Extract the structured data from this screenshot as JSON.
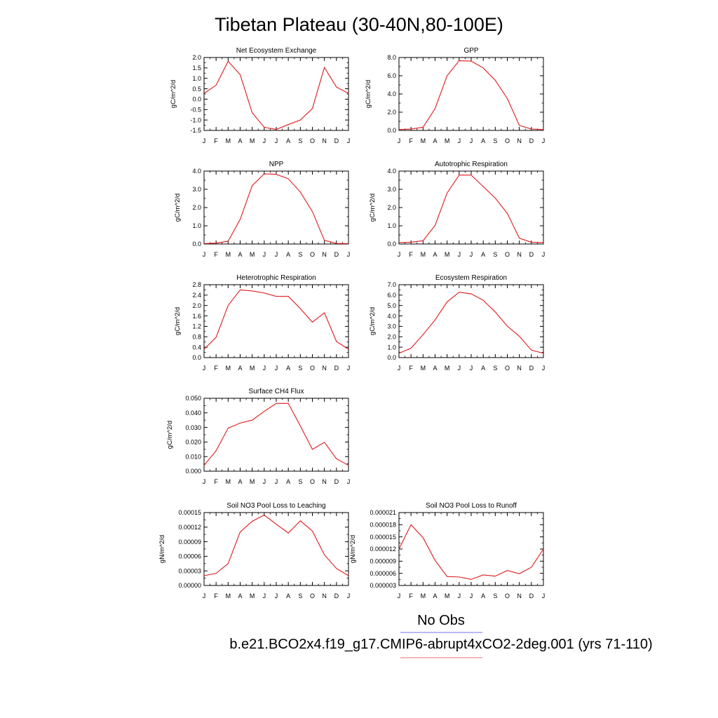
{
  "figure": {
    "title": "Tibetan Plateau (30-40N,80-100E)",
    "months": [
      "J",
      "F",
      "M",
      "A",
      "M",
      "J",
      "J",
      "A",
      "S",
      "O",
      "N",
      "D",
      "J"
    ],
    "line_color": "#e0191b",
    "legend": [
      {
        "label": "No Obs",
        "color": "#8a8ef0"
      },
      {
        "label": "b.e21.BCO2x4.f19_g17.CMIP6-abrupt4xCO2-2deg.001 (yrs 71-110)",
        "color": "#f08a8a"
      }
    ]
  },
  "chart_data": [
    {
      "type": "line",
      "title": "Net Ecosystem Exchange",
      "ylabel": "gC/m^2/d",
      "ylim": [
        -1.5,
        2.0
      ],
      "yticks": [
        "-1.5",
        "-1.0",
        "-0.5",
        "0.0",
        "0.5",
        "1.0",
        "1.5",
        "2.0"
      ],
      "values": [
        0.28,
        0.67,
        1.82,
        1.18,
        -0.65,
        -1.35,
        -1.45,
        -1.22,
        -1.0,
        -0.45,
        1.52,
        0.58,
        0.28
      ]
    },
    {
      "type": "line",
      "title": "GPP",
      "ylabel": "gC/m^2/d",
      "ylim": [
        0,
        8
      ],
      "yticks": [
        "0.0",
        "2.0",
        "4.0",
        "6.0",
        "8.0"
      ],
      "values": [
        0.1,
        0.15,
        0.35,
        2.4,
        6.0,
        7.65,
        7.6,
        6.85,
        5.5,
        3.5,
        0.55,
        0.15,
        0.1
      ]
    },
    {
      "type": "line",
      "title": "NPP",
      "ylabel": "gC/m^2/d",
      "ylim": [
        0,
        4
      ],
      "yticks": [
        "0.0",
        "1.0",
        "2.0",
        "3.0",
        "4.0"
      ],
      "values": [
        0.02,
        0.05,
        0.15,
        1.35,
        3.2,
        3.85,
        3.82,
        3.58,
        2.85,
        1.78,
        0.2,
        0.03,
        0.02
      ]
    },
    {
      "type": "line",
      "title": "Autotrophic Respiration",
      "ylabel": "gC/m^2/d",
      "ylim": [
        0,
        4
      ],
      "yticks": [
        "0.0",
        "1.0",
        "2.0",
        "3.0",
        "4.0"
      ],
      "values": [
        0.08,
        0.1,
        0.18,
        1.02,
        2.8,
        3.78,
        3.78,
        3.15,
        2.52,
        1.68,
        0.32,
        0.1,
        0.08
      ]
    },
    {
      "type": "line",
      "title": "Heterotrophic Respiration",
      "ylabel": "gC/m^2/d",
      "ylim": [
        0,
        2.8
      ],
      "yticks": [
        "0.0",
        "0.4",
        "0.8",
        "1.2",
        "1.6",
        "2.0",
        "2.4",
        "2.8"
      ],
      "values": [
        0.32,
        0.78,
        2.0,
        2.6,
        2.56,
        2.48,
        2.35,
        2.35,
        1.88,
        1.36,
        1.72,
        0.62,
        0.32
      ]
    },
    {
      "type": "line",
      "title": "Ecosystem Respiration",
      "ylabel": "gC/m^2/d",
      "ylim": [
        0,
        7
      ],
      "yticks": [
        "0.0",
        "1.0",
        "2.0",
        "3.0",
        "4.0",
        "5.0",
        "6.0",
        "7.0"
      ],
      "values": [
        0.42,
        0.9,
        2.2,
        3.62,
        5.35,
        6.28,
        6.12,
        5.5,
        4.38,
        3.02,
        2.05,
        0.72,
        0.42
      ]
    },
    {
      "type": "line",
      "title": "Surface CH4 Flux",
      "ylabel": "gC/m^2/d",
      "ylim": [
        0,
        0.05
      ],
      "yticks": [
        "0.000",
        "0.010",
        "0.020",
        "0.030",
        "0.040",
        "0.050"
      ],
      "values": [
        0.004,
        0.014,
        0.0295,
        0.033,
        0.035,
        0.041,
        0.0465,
        0.0465,
        0.031,
        0.015,
        0.0198,
        0.0085,
        0.004
      ]
    },
    {
      "type": "line",
      "title": "Soil NO3 Pool Loss to Leaching",
      "ylabel": "gN/m^2/d",
      "ylim": [
        0,
        0.00015
      ],
      "yticks": [
        "0.00000",
        "0.00003",
        "0.00006",
        "0.00009",
        "0.00012",
        "0.00015"
      ],
      "values": [
        2e-05,
        2.5e-05,
        4.5e-05,
        0.00011,
        0.000132,
        0.000145,
        0.000126,
        0.000108,
        0.000133,
        0.000112,
        6.3e-05,
        3.5e-05,
        2e-05
      ]
    },
    {
      "type": "line",
      "title": "Soil NO3 Pool Loss to Runoff",
      "ylabel": "gN/m^2/d",
      "ylim": [
        3e-06,
        2.1e-05
      ],
      "yticks": [
        "0.000003",
        "0.000006",
        "0.000009",
        "0.000012",
        "0.000015",
        "0.000018",
        "0.000021"
      ],
      "values": [
        1.2e-05,
        1.8e-05,
        1.48e-05,
        9.2e-06,
        5.2e-06,
        5.1e-06,
        4.5e-06,
        5.6e-06,
        5.3e-06,
        6.7e-06,
        5.9e-06,
        7.5e-06,
        1.2e-05
      ]
    }
  ]
}
